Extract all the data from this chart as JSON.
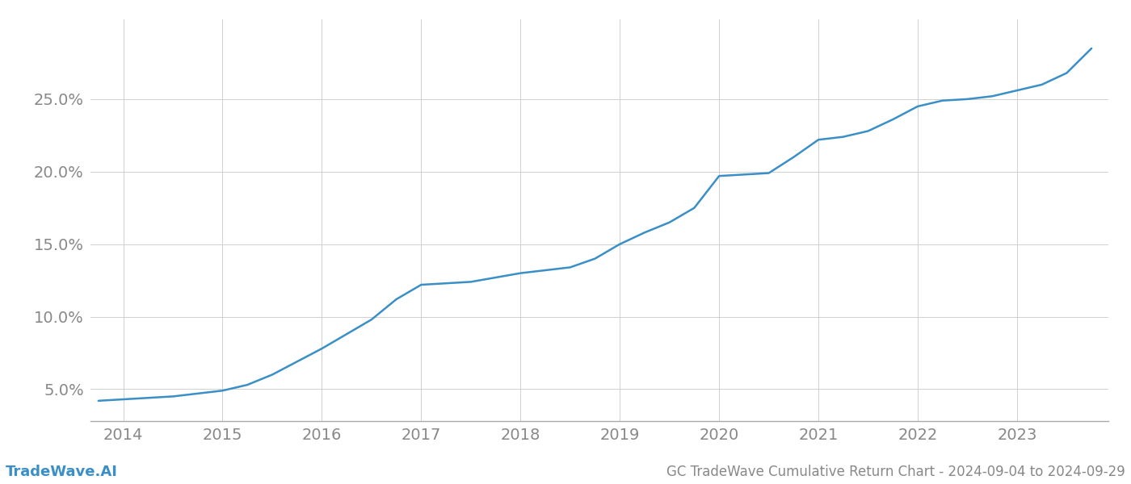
{
  "x_years": [
    2013.75,
    2014.0,
    2014.25,
    2014.5,
    2014.75,
    2015.0,
    2015.25,
    2015.5,
    2015.75,
    2016.0,
    2016.25,
    2016.5,
    2016.75,
    2017.0,
    2017.25,
    2017.5,
    2017.75,
    2018.0,
    2018.25,
    2018.5,
    2018.75,
    2019.0,
    2019.25,
    2019.5,
    2019.75,
    2020.0,
    2020.25,
    2020.5,
    2020.75,
    2021.0,
    2021.25,
    2021.5,
    2021.75,
    2022.0,
    2022.25,
    2022.5,
    2022.75,
    2023.0,
    2023.25,
    2023.5,
    2023.75
  ],
  "y_values": [
    0.042,
    0.043,
    0.044,
    0.045,
    0.047,
    0.049,
    0.053,
    0.06,
    0.069,
    0.078,
    0.088,
    0.098,
    0.112,
    0.122,
    0.123,
    0.124,
    0.127,
    0.13,
    0.132,
    0.134,
    0.14,
    0.15,
    0.158,
    0.165,
    0.175,
    0.197,
    0.198,
    0.199,
    0.21,
    0.222,
    0.224,
    0.228,
    0.236,
    0.245,
    0.249,
    0.25,
    0.252,
    0.256,
    0.26,
    0.268,
    0.285
  ],
  "line_color": "#3a8fc7",
  "line_width": 1.8,
  "background_color": "#ffffff",
  "grid_color": "#d0d0d0",
  "title": "GC TradeWave Cumulative Return Chart - 2024-09-04 to 2024-09-29",
  "watermark": "TradeWave.AI",
  "x_tick_labels": [
    "2014",
    "2015",
    "2016",
    "2017",
    "2018",
    "2019",
    "2020",
    "2021",
    "2022",
    "2023"
  ],
  "x_tick_positions": [
    2014,
    2015,
    2016,
    2017,
    2018,
    2019,
    2020,
    2021,
    2022,
    2023
  ],
  "y_ticks": [
    0.05,
    0.1,
    0.15,
    0.2,
    0.25
  ],
  "y_tick_labels": [
    "5.0%",
    "10.0%",
    "15.0%",
    "20.0%",
    "25.0%"
  ],
  "xlim": [
    2013.67,
    2023.92
  ],
  "ylim": [
    0.028,
    0.305
  ],
  "tick_color": "#888888",
  "tick_fontsize": 14,
  "watermark_fontsize": 13,
  "title_fontsize": 12
}
